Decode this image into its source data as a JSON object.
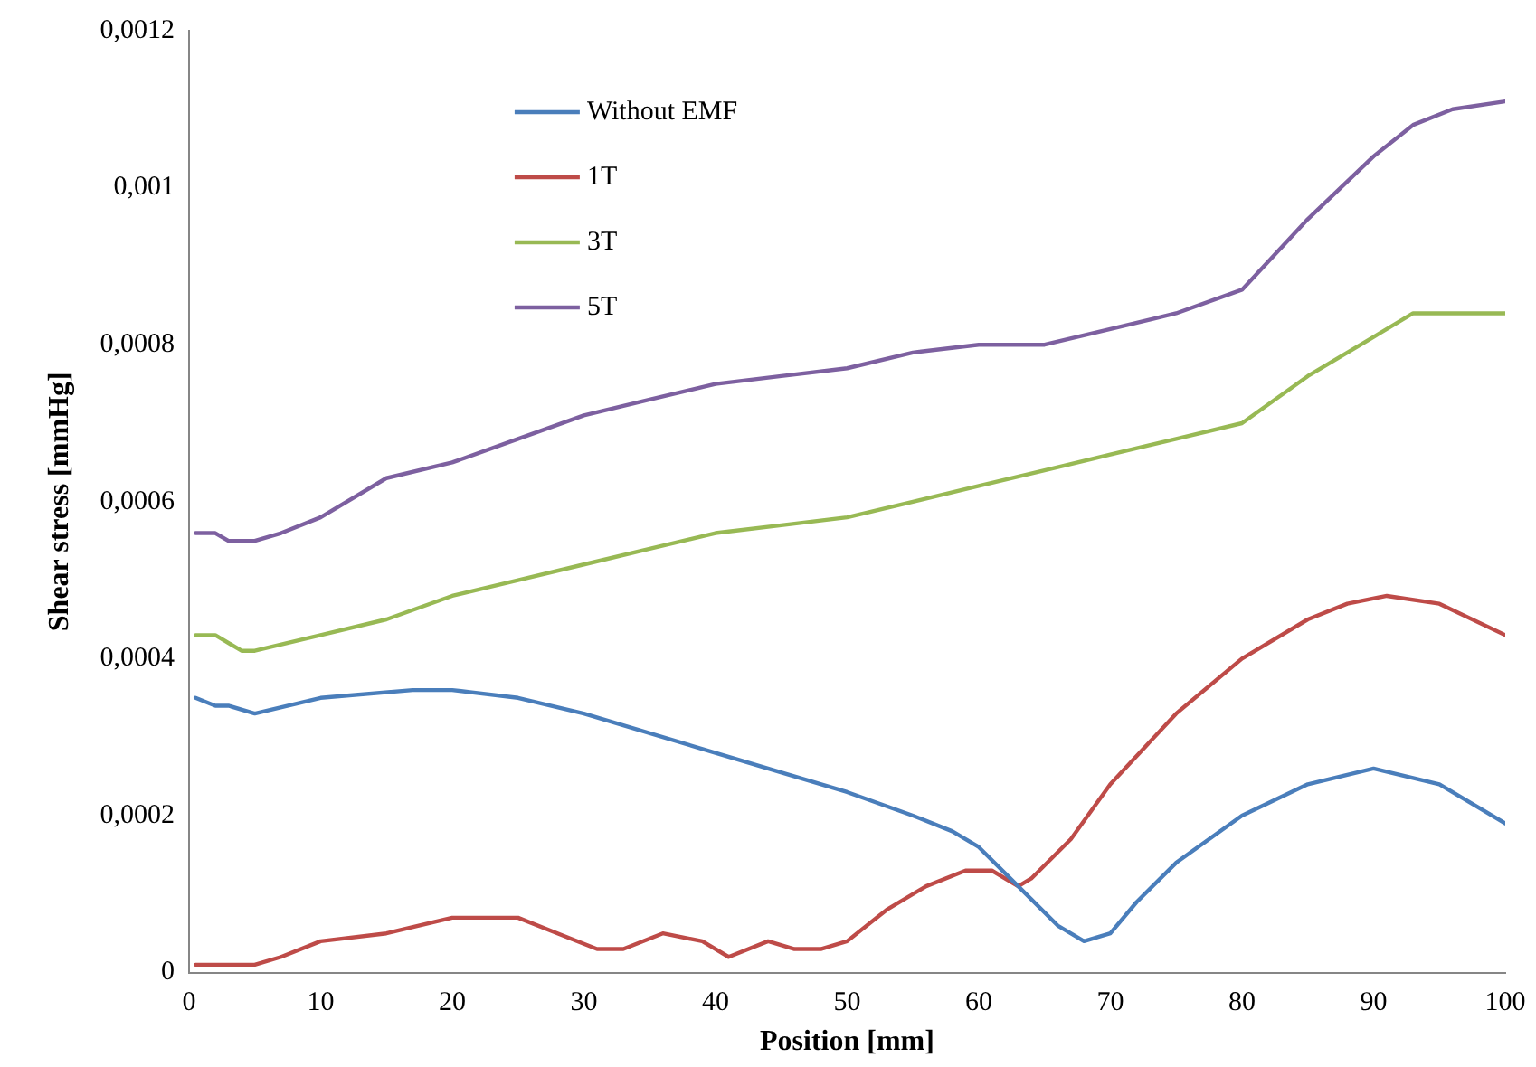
{
  "chart_data": {
    "type": "line",
    "xlabel": "Position [mm]",
    "ylabel": "Shear stress [mmHg]",
    "xlim": [
      0,
      100
    ],
    "xticks": [
      0,
      10,
      20,
      30,
      40,
      50,
      60,
      70,
      80,
      90,
      100
    ],
    "ylim": [
      0,
      0.0012
    ],
    "yticks": [
      0,
      {
        "value": 0.0002,
        "label": "0,0002"
      },
      {
        "value": 0.0004,
        "label": "0,0004"
      },
      {
        "value": 0.0006,
        "label": "0,0006"
      },
      {
        "value": 0.0008,
        "label": "0,0008"
      },
      {
        "value": 0.001,
        "label": "0,001"
      },
      {
        "value": 0.0012,
        "label": "0,0012"
      }
    ],
    "grid": false,
    "legend": "top left",
    "marker": "none",
    "line_style": "solid",
    "series": [
      {
        "name": "Without EMF",
        "color": "#4a7ebb",
        "x": [
          0.5,
          2,
          3,
          5,
          10,
          17,
          20,
          25,
          30,
          40,
          50,
          55,
          58,
          60,
          63,
          66,
          68,
          70,
          72,
          75,
          80,
          85,
          90,
          95,
          100
        ],
        "values": [
          0.00035,
          0.00034,
          0.00034,
          0.00033,
          0.00035,
          0.00036,
          0.00036,
          0.00035,
          0.00033,
          0.00028,
          0.00023,
          0.0002,
          0.00018,
          0.00016,
          0.00011,
          6e-05,
          4e-05,
          5e-05,
          9e-05,
          0.00014,
          0.0002,
          0.00024,
          0.00026,
          0.00024,
          0.00019
        ]
      },
      {
        "name": "1T",
        "color": "#be4b48",
        "x": [
          0.5,
          3,
          5,
          7,
          10,
          15,
          20,
          23,
          25,
          28,
          31,
          33,
          36,
          39,
          41,
          44,
          46,
          48,
          50,
          53,
          56,
          59,
          61,
          63,
          64,
          67,
          70,
          75,
          80,
          85,
          88,
          91,
          95,
          100
        ],
        "values": [
          1e-05,
          1e-05,
          1e-05,
          2e-05,
          4e-05,
          5e-05,
          7e-05,
          7e-05,
          7e-05,
          5e-05,
          3e-05,
          3e-05,
          5e-05,
          4e-05,
          2e-05,
          4e-05,
          3e-05,
          3e-05,
          4e-05,
          8e-05,
          0.00011,
          0.00013,
          0.00013,
          0.00011,
          0.00012,
          0.00017,
          0.00024,
          0.00033,
          0.0004,
          0.00045,
          0.00047,
          0.00048,
          0.00047,
          0.00043
        ]
      },
      {
        "name": "3T",
        "color": "#98b954",
        "x": [
          0.5,
          2,
          4,
          5,
          10,
          15,
          20,
          25,
          30,
          35,
          40,
          45,
          50,
          55,
          60,
          65,
          70,
          75,
          80,
          85,
          90,
          93,
          100
        ],
        "values": [
          0.00043,
          0.00043,
          0.00041,
          0.00041,
          0.00043,
          0.00045,
          0.00048,
          0.0005,
          0.00052,
          0.00054,
          0.00056,
          0.00057,
          0.00058,
          0.0006,
          0.00062,
          0.00064,
          0.00066,
          0.00068,
          0.0007,
          0.00076,
          0.00081,
          0.00084,
          0.00084
        ]
      },
      {
        "name": "5T",
        "color": "#7d60a0",
        "x": [
          0.5,
          2,
          3,
          5,
          7,
          10,
          15,
          20,
          25,
          30,
          35,
          40,
          45,
          50,
          55,
          60,
          65,
          70,
          75,
          80,
          85,
          90,
          93,
          96,
          100
        ],
        "values": [
          0.00056,
          0.00056,
          0.00055,
          0.00055,
          0.00056,
          0.00058,
          0.00063,
          0.00065,
          0.00068,
          0.00071,
          0.00073,
          0.00075,
          0.00076,
          0.00077,
          0.00079,
          0.0008,
          0.0008,
          0.00082,
          0.00084,
          0.00087,
          0.00096,
          0.00104,
          0.00108,
          0.0011,
          0.00111
        ]
      }
    ]
  }
}
